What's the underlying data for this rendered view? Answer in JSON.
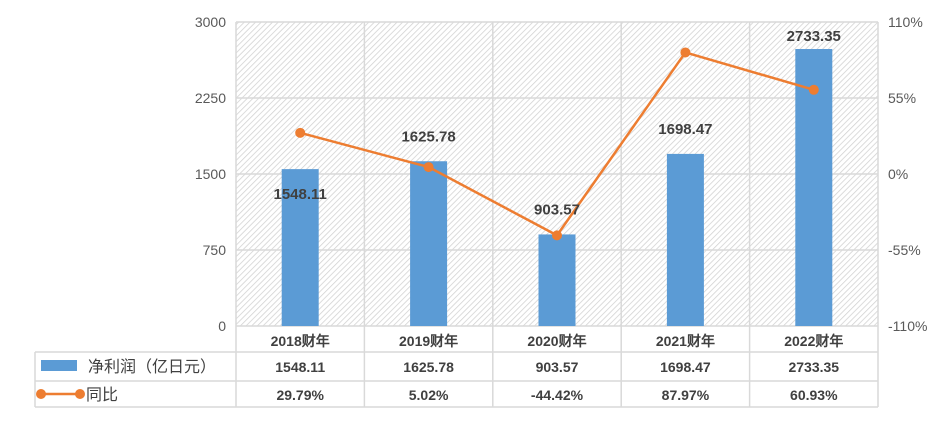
{
  "chart_data": {
    "type": "bar",
    "categories": [
      "2018财年",
      "2019财年",
      "2020财年",
      "2021财年",
      "2022财年"
    ],
    "series": [
      {
        "name": "净利润（亿日元）",
        "type": "bar",
        "axis": "left",
        "color": "#5b9bd5",
        "values": [
          1548.11,
          1625.78,
          903.57,
          1698.47,
          2733.35
        ],
        "labels": [
          "1548.11",
          "1625.78",
          "903.57",
          "1698.47",
          "2733.35"
        ]
      },
      {
        "name": "同比",
        "type": "line",
        "axis": "right",
        "color": "#ed7d31",
        "values": [
          29.79,
          5.02,
          -44.42,
          87.97,
          60.93
        ],
        "labels": [
          "29.79%",
          "5.02%",
          "-44.42%",
          "87.97%",
          "60.93%"
        ]
      }
    ],
    "left_axis": {
      "ylim": [
        0,
        3000
      ],
      "ticks": [
        0,
        750,
        1500,
        2250,
        3000
      ],
      "tick_labels": [
        "0",
        "750",
        "1500",
        "2250",
        "3000"
      ]
    },
    "right_axis": {
      "ylim": [
        -110,
        110
      ],
      "ticks": [
        -110,
        -55,
        0,
        55,
        110
      ],
      "tick_labels": [
        "-110%",
        "-55%",
        "0%",
        "55%",
        "110%"
      ]
    },
    "grid": true,
    "legend": "data-table below chart"
  }
}
